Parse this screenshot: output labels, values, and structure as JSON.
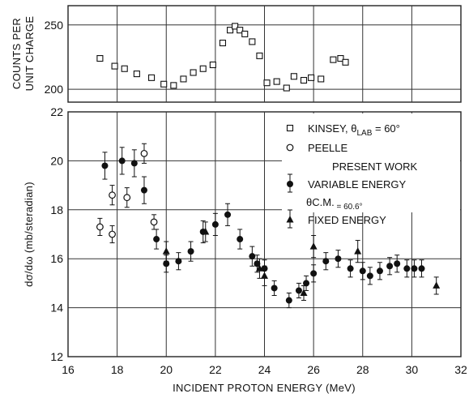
{
  "chart_data": [
    {
      "id": "top",
      "type": "scatter",
      "ylabel_lines": [
        "COUNTS PER",
        "UNIT CHARGE"
      ],
      "xlim": [
        16,
        32
      ],
      "ylim": [
        190,
        265
      ],
      "yticks": [
        200,
        250
      ],
      "grid": true,
      "series": [
        {
          "marker": "square-open",
          "points": [
            {
              "x": 17.3,
              "y": 224
            },
            {
              "x": 17.9,
              "y": 218
            },
            {
              "x": 18.3,
              "y": 216
            },
            {
              "x": 18.8,
              "y": 212
            },
            {
              "x": 19.4,
              "y": 209
            },
            {
              "x": 19.9,
              "y": 204
            },
            {
              "x": 20.3,
              "y": 203
            },
            {
              "x": 20.7,
              "y": 208
            },
            {
              "x": 21.1,
              "y": 213
            },
            {
              "x": 21.5,
              "y": 216
            },
            {
              "x": 21.9,
              "y": 219
            },
            {
              "x": 22.3,
              "y": 236
            },
            {
              "x": 22.6,
              "y": 246
            },
            {
              "x": 22.8,
              "y": 249
            },
            {
              "x": 23.0,
              "y": 246
            },
            {
              "x": 23.2,
              "y": 243
            },
            {
              "x": 23.5,
              "y": 237
            },
            {
              "x": 23.8,
              "y": 226
            },
            {
              "x": 24.1,
              "y": 205
            },
            {
              "x": 24.5,
              "y": 206
            },
            {
              "x": 24.9,
              "y": 201
            },
            {
              "x": 25.2,
              "y": 210
            },
            {
              "x": 25.6,
              "y": 207
            },
            {
              "x": 25.9,
              "y": 209
            },
            {
              "x": 26.3,
              "y": 208
            },
            {
              "x": 26.8,
              "y": 223
            },
            {
              "x": 27.1,
              "y": 224
            },
            {
              "x": 27.3,
              "y": 221
            }
          ]
        }
      ]
    },
    {
      "id": "bottom",
      "type": "scatter",
      "xlabel": "INCIDENT PROTON ENERGY (MeV)",
      "ylabel": "dσ/dω (mb/steradian)",
      "xlim": [
        16,
        32
      ],
      "ylim": [
        12,
        22
      ],
      "xticks": [
        16,
        18,
        20,
        22,
        24,
        26,
        28,
        30,
        32
      ],
      "yticks": [
        12,
        14,
        16,
        18,
        20,
        22
      ],
      "grid": true,
      "series": [
        {
          "name": "PEELLE",
          "marker": "circle-open",
          "points": [
            {
              "x": 17.3,
              "y": 17.3,
              "err": 0.35
            },
            {
              "x": 17.8,
              "y": 18.6,
              "err": 0.4
            },
            {
              "x": 17.8,
              "y": 17.0,
              "err": 0.35
            },
            {
              "x": 18.4,
              "y": 18.5,
              "err": 0.4
            },
            {
              "x": 19.1,
              "y": 20.3,
              "err": 0.4
            },
            {
              "x": 19.5,
              "y": 17.5,
              "err": 0.3
            }
          ]
        },
        {
          "name": "VARIABLE ENERGY",
          "marker": "circle-filled",
          "points": [
            {
              "x": 17.5,
              "y": 19.8,
              "err": 0.55
            },
            {
              "x": 18.2,
              "y": 20.0,
              "err": 0.55
            },
            {
              "x": 18.7,
              "y": 19.9,
              "err": 0.55
            },
            {
              "x": 19.1,
              "y": 18.8,
              "err": 0.55
            },
            {
              "x": 19.6,
              "y": 16.8,
              "err": 0.4
            },
            {
              "x": 20.0,
              "y": 15.8,
              "err": 0.35
            },
            {
              "x": 20.5,
              "y": 15.9,
              "err": 0.35
            },
            {
              "x": 21.0,
              "y": 16.3,
              "err": 0.4
            },
            {
              "x": 21.5,
              "y": 17.1,
              "err": 0.45
            },
            {
              "x": 22.0,
              "y": 17.4,
              "err": 0.45
            },
            {
              "x": 22.5,
              "y": 17.8,
              "err": 0.45
            },
            {
              "x": 23.0,
              "y": 16.8,
              "err": 0.4
            },
            {
              "x": 23.5,
              "y": 16.1,
              "err": 0.4
            },
            {
              "x": 23.7,
              "y": 15.8,
              "err": 0.35
            },
            {
              "x": 24.0,
              "y": 15.6,
              "err": 0.35
            },
            {
              "x": 24.4,
              "y": 14.8,
              "err": 0.3
            },
            {
              "x": 25.0,
              "y": 14.3,
              "err": 0.3
            },
            {
              "x": 25.4,
              "y": 14.7,
              "err": 0.3
            },
            {
              "x": 25.7,
              "y": 15.0,
              "err": 0.3
            },
            {
              "x": 26.0,
              "y": 15.4,
              "err": 0.35
            },
            {
              "x": 26.5,
              "y": 15.9,
              "err": 0.35
            },
            {
              "x": 27.0,
              "y": 16.0,
              "err": 0.35
            },
            {
              "x": 27.5,
              "y": 15.6,
              "err": 0.35
            },
            {
              "x": 28.0,
              "y": 15.5,
              "err": 0.35
            },
            {
              "x": 28.3,
              "y": 15.3,
              "err": 0.35
            },
            {
              "x": 28.7,
              "y": 15.5,
              "err": 0.35
            },
            {
              "x": 29.1,
              "y": 15.7,
              "err": 0.35
            },
            {
              "x": 29.4,
              "y": 15.8,
              "err": 0.35
            },
            {
              "x": 29.8,
              "y": 15.6,
              "err": 0.35
            },
            {
              "x": 30.1,
              "y": 15.6,
              "err": 0.35
            },
            {
              "x": 30.4,
              "y": 15.6,
              "err": 0.35
            }
          ]
        },
        {
          "name": "FIXED ENERGY",
          "marker": "triangle-filled",
          "points": [
            {
              "x": 20.0,
              "y": 16.3,
              "err": 0.4
            },
            {
              "x": 21.6,
              "y": 17.1,
              "err": 0.4
            },
            {
              "x": 23.8,
              "y": 15.6,
              "err": 0.4
            },
            {
              "x": 24.0,
              "y": 15.3,
              "err": 0.4
            },
            {
              "x": 25.6,
              "y": 14.6,
              "err": 0.3
            },
            {
              "x": 26.0,
              "y": 16.5,
              "err": 0.45
            },
            {
              "x": 27.8,
              "y": 16.3,
              "err": 0.45
            },
            {
              "x": 31.0,
              "y": 14.9,
              "err": 0.35
            }
          ]
        }
      ],
      "legend": {
        "placement": "top-right",
        "entries": [
          {
            "marker": "square-open",
            "parts": [
              "KINSEY, ",
              "θ",
              "LAB",
              " = 60°"
            ]
          },
          {
            "marker": "circle-open",
            "text": "PEELLE"
          },
          {
            "marker": "none",
            "text": "PRESENT WORK"
          },
          {
            "marker": "circle-filled",
            "text": "VARIABLE ENERGY"
          },
          {
            "marker": "none",
            "parts": [
              "θ",
              "C.M.",
              " = 60.6°"
            ]
          },
          {
            "marker": "triangle-filled",
            "text": "FIXED ENERGY"
          }
        ]
      }
    }
  ]
}
